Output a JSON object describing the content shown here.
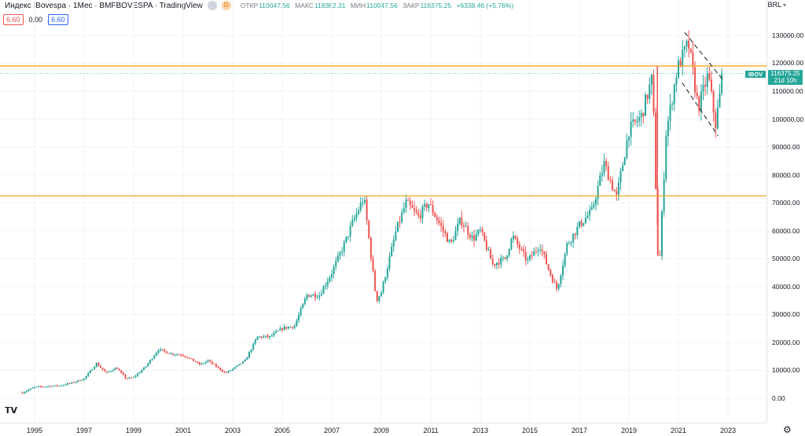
{
  "header": {
    "title": "Индекс IBovespa · 1Мес · BMFBOVESPA · TradingView",
    "badge": "D",
    "ohlc_open_label": "ОТКР",
    "ohlc_open": "110047.56",
    "ohlc_high_label": "МАКС",
    "ohlc_high": "118382.31",
    "ohlc_low_label": "МИН",
    "ohlc_low": "110047.56",
    "ohlc_close_label": "ЗАКР",
    "ohlc_close": "116375.25",
    "change": "+6338.46 (+5.76%)"
  },
  "indicator": {
    "left": "6.60",
    "mid": "0.00",
    "right": "6.60"
  },
  "currency": "BRL",
  "price_label": {
    "symbol": "IBOV",
    "price": "116375.25",
    "countdown": "21d 10h"
  },
  "colors": {
    "up": "#26a69a",
    "down": "#ef5350",
    "level": "#f5a623",
    "accent": "#26a69a"
  },
  "chart_data": {
    "type": "candlestick",
    "x_ticks": [
      "1995",
      "1997",
      "1999",
      "2001",
      "2003",
      "2005",
      "2007",
      "2009",
      "2011",
      "2013",
      "2015",
      "2017",
      "2019",
      "2021",
      "2023"
    ],
    "y_ticks": [
      "0.00",
      "10000.00",
      "20000.00",
      "30000.00",
      "40000.00",
      "50000.00",
      "60000.00",
      "70000.00",
      "80000.00",
      "90000.00",
      "100000.00",
      "110000.00",
      "120000.00",
      "130000.00"
    ],
    "ylim": [
      0,
      130000
    ],
    "horizontal_levels": [
      119000,
      72500
    ],
    "last_price": 116375.25,
    "trendlines": [
      {
        "x1": 2021.25,
        "y1": 131000,
        "x2": 2022.8,
        "y2": 114000
      },
      {
        "x1": 2021.15,
        "y1": 113000,
        "x2": 2022.6,
        "y2": 94000
      }
    ],
    "anchors": [
      [
        1994.5,
        2000
      ],
      [
        1995,
        4000
      ],
      [
        1995.5,
        4300
      ],
      [
        1996,
        4500
      ],
      [
        1996.5,
        5500
      ],
      [
        1997,
        7000
      ],
      [
        1997.5,
        12500
      ],
      [
        1997.9,
        9000
      ],
      [
        1998.3,
        11000
      ],
      [
        1998.7,
        7000
      ],
      [
        1999,
        7500
      ],
      [
        1999.5,
        11500
      ],
      [
        2000,
        17500
      ],
      [
        2000.5,
        16000
      ],
      [
        2001,
        15500
      ],
      [
        2001.7,
        12000
      ],
      [
        2002,
        13500
      ],
      [
        2002.7,
        9000
      ],
      [
        2003,
        10500
      ],
      [
        2003.5,
        13500
      ],
      [
        2004,
        22000
      ],
      [
        2004.5,
        22000
      ],
      [
        2005,
        25000
      ],
      [
        2005.5,
        26000
      ],
      [
        2006,
        37000
      ],
      [
        2006.5,
        37000
      ],
      [
        2007,
        45000
      ],
      [
        2007.5,
        55000
      ],
      [
        2007.8,
        62000
      ],
      [
        2008.3,
        72000
      ],
      [
        2008.8,
        35000
      ],
      [
        2009,
        38000
      ],
      [
        2009.6,
        60000
      ],
      [
        2010,
        70000
      ],
      [
        2010.5,
        65000
      ],
      [
        2010.9,
        70000
      ],
      [
        2011.5,
        60000
      ],
      [
        2011.8,
        55000
      ],
      [
        2012.2,
        64000
      ],
      [
        2012.7,
        57000
      ],
      [
        2013,
        60000
      ],
      [
        2013.5,
        48000
      ],
      [
        2014,
        50000
      ],
      [
        2014.3,
        58000
      ],
      [
        2014.9,
        49000
      ],
      [
        2015.4,
        55000
      ],
      [
        2015.8,
        45000
      ],
      [
        2016.1,
        39000
      ],
      [
        2016.5,
        55000
      ],
      [
        2017,
        62000
      ],
      [
        2017.5,
        67000
      ],
      [
        2018,
        84000
      ],
      [
        2018.5,
        72000
      ],
      [
        2019,
        96000
      ],
      [
        2019.5,
        101000
      ],
      [
        2019.95,
        115000
      ],
      [
        2020.2,
        42000
      ],
      [
        2020.5,
        95000
      ],
      [
        2020.95,
        118000
      ],
      [
        2021.4,
        127000
      ],
      [
        2021.8,
        104000
      ],
      [
        2022.2,
        116000
      ],
      [
        2022.5,
        98000
      ],
      [
        2022.8,
        116375
      ]
    ]
  }
}
